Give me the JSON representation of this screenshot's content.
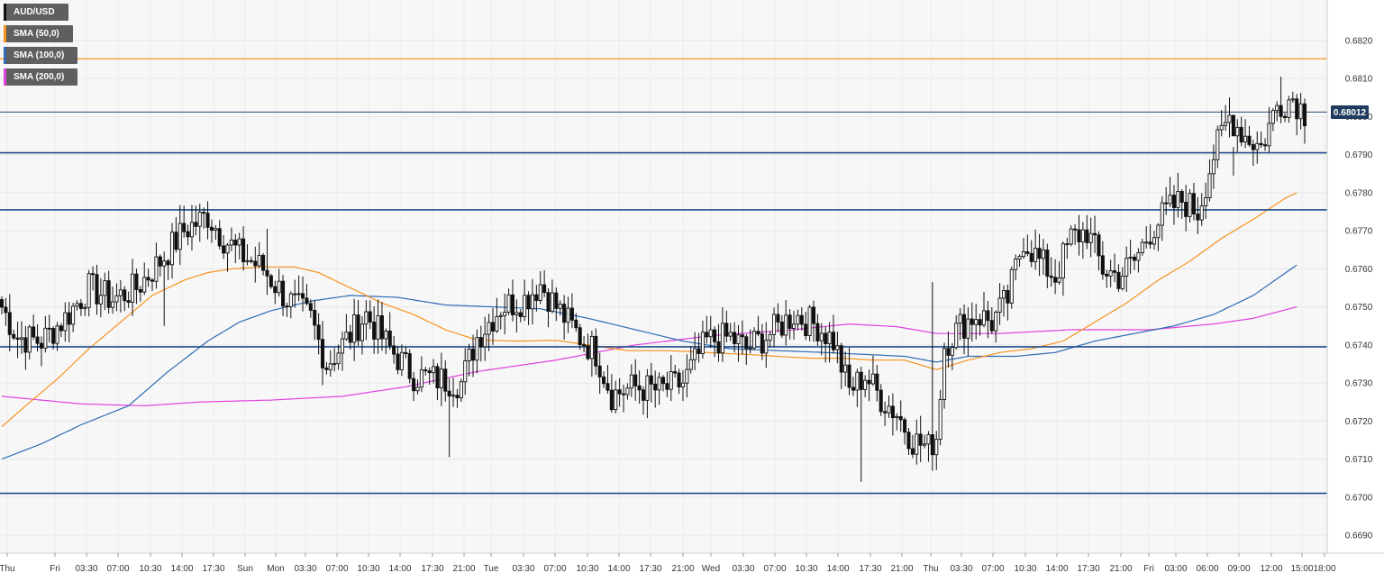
{
  "chart_data": {
    "type": "candlestick",
    "symbol": "AUD/USD",
    "legend": [
      {
        "label": "AUD/USD",
        "color": "#222222"
      },
      {
        "label": "SMA (50,0)",
        "color": "#f7931e"
      },
      {
        "label": "SMA (100,0)",
        "color": "#2e6bb3"
      },
      {
        "label": "SMA (200,0)",
        "color": "#e040e0"
      }
    ],
    "price_label": "0.68012",
    "last_price": 0.68012,
    "ylim": [
      0.6684,
      0.683
    ],
    "y_ticks": [
      "0.6820",
      "0.6810",
      "0.6800",
      "0.6790",
      "0.6780",
      "0.6770",
      "0.6760",
      "0.6750",
      "0.6740",
      "0.6730",
      "0.6720",
      "0.6710",
      "0.6700",
      "0.6690"
    ],
    "x_ticks": [
      "Thu",
      "Fri",
      "03:30",
      "07:00",
      "10:30",
      "14:00",
      "17:30",
      "Sun",
      "Mon",
      "03:30",
      "07:00",
      "10:30",
      "14:00",
      "17:30",
      "21:00",
      "Tue",
      "03:30",
      "07:00",
      "10:30",
      "14:00",
      "17:30",
      "21:00",
      "Wed",
      "03:30",
      "07:00",
      "10:30",
      "14:00",
      "17:30",
      "21:00",
      "Thu",
      "03:30",
      "07:00",
      "10:30",
      "14:00",
      "17:30",
      "21:00",
      "Fri",
      "03:00",
      "06:00",
      "09:00",
      "12:00",
      "15:00",
      "18:00"
    ],
    "levels": [
      {
        "value": 0.68152,
        "color": "#f7931e"
      },
      {
        "value": 0.67905,
        "color": "#1f4e8c"
      },
      {
        "value": 0.67755,
        "color": "#1f4e8c"
      },
      {
        "value": 0.67395,
        "color": "#1f4e8c"
      },
      {
        "value": 0.6701,
        "color": "#1f4e8c"
      }
    ],
    "close_anchors": [
      [
        0,
        0.675
      ],
      [
        4,
        0.6742
      ],
      [
        10,
        0.6741
      ],
      [
        16,
        0.6747
      ],
      [
        22,
        0.6755
      ],
      [
        28,
        0.6752
      ],
      [
        34,
        0.6755
      ],
      [
        40,
        0.6762
      ],
      [
        46,
        0.677
      ],
      [
        52,
        0.6774
      ],
      [
        56,
        0.6768
      ],
      [
        60,
        0.6764
      ],
      [
        66,
        0.676
      ],
      [
        72,
        0.6752
      ],
      [
        78,
        0.6747
      ],
      [
        82,
        0.6735
      ],
      [
        86,
        0.674
      ],
      [
        92,
        0.6748
      ],
      [
        98,
        0.6739
      ],
      [
        104,
        0.6732
      ],
      [
        110,
        0.6731
      ],
      [
        116,
        0.673
      ],
      [
        120,
        0.6742
      ],
      [
        126,
        0.675
      ],
      [
        132,
        0.6752
      ],
      [
        136,
        0.6756
      ],
      [
        140,
        0.675
      ],
      [
        146,
        0.6742
      ],
      [
        150,
        0.6738
      ],
      [
        154,
        0.6727
      ],
      [
        160,
        0.6729
      ],
      [
        166,
        0.6728
      ],
      [
        172,
        0.673
      ],
      [
        178,
        0.6741
      ],
      [
        184,
        0.6742
      ],
      [
        188,
        0.6739
      ],
      [
        194,
        0.6743
      ],
      [
        200,
        0.6748
      ],
      [
        206,
        0.6745
      ],
      [
        210,
        0.6741
      ],
      [
        214,
        0.6728
      ],
      [
        218,
        0.6732
      ],
      [
        222,
        0.6726
      ],
      [
        226,
        0.6722
      ],
      [
        230,
        0.6715
      ],
      [
        234,
        0.6713
      ],
      [
        236,
        0.6716
      ],
      [
        238,
        0.674
      ],
      [
        242,
        0.6745
      ],
      [
        246,
        0.6748
      ],
      [
        250,
        0.6746
      ],
      [
        254,
        0.6752
      ],
      [
        258,
        0.6768
      ],
      [
        262,
        0.6762
      ],
      [
        266,
        0.6758
      ],
      [
        270,
        0.6768
      ],
      [
        274,
        0.677
      ],
      [
        278,
        0.676
      ],
      [
        282,
        0.6758
      ],
      [
        286,
        0.6762
      ],
      [
        290,
        0.677
      ],
      [
        294,
        0.6775
      ],
      [
        298,
        0.6778
      ],
      [
        302,
        0.6775
      ],
      [
        306,
        0.679
      ],
      [
        310,
        0.68
      ],
      [
        314,
        0.6795
      ],
      [
        318,
        0.6792
      ],
      [
        322,
        0.6803
      ],
      [
        326,
        0.6805
      ],
      [
        329,
        0.6801
      ]
    ],
    "sma50": [
      [
        0,
        0.67185
      ],
      [
        6,
        0.6724
      ],
      [
        14,
        0.6731
      ],
      [
        22,
        0.6739
      ],
      [
        30,
        0.6746
      ],
      [
        38,
        0.6753
      ],
      [
        46,
        0.6757
      ],
      [
        52,
        0.6759
      ],
      [
        58,
        0.676
      ],
      [
        66,
        0.67605
      ],
      [
        74,
        0.67605
      ],
      [
        80,
        0.6759
      ],
      [
        88,
        0.6755
      ],
      [
        96,
        0.6751
      ],
      [
        104,
        0.6748
      ],
      [
        112,
        0.6744
      ],
      [
        120,
        0.67413
      ],
      [
        130,
        0.6741
      ],
      [
        140,
        0.67412
      ],
      [
        148,
        0.674
      ],
      [
        158,
        0.67385
      ],
      [
        168,
        0.67385
      ],
      [
        178,
        0.6738
      ],
      [
        188,
        0.67375
      ],
      [
        196,
        0.6737
      ],
      [
        204,
        0.67365
      ],
      [
        212,
        0.67365
      ],
      [
        220,
        0.6736
      ],
      [
        228,
        0.6736
      ],
      [
        236,
        0.67335
      ],
      [
        244,
        0.6736
      ],
      [
        252,
        0.6738
      ],
      [
        260,
        0.6739
      ],
      [
        268,
        0.6741
      ],
      [
        276,
        0.6746
      ],
      [
        284,
        0.6751
      ],
      [
        292,
        0.6757
      ],
      [
        300,
        0.6762
      ],
      [
        308,
        0.6768
      ],
      [
        316,
        0.6773
      ],
      [
        324,
        0.67785
      ],
      [
        327,
        0.678
      ]
    ],
    "sma100": [
      [
        0,
        0.671
      ],
      [
        10,
        0.6714
      ],
      [
        20,
        0.6719
      ],
      [
        32,
        0.6724
      ],
      [
        42,
        0.6733
      ],
      [
        52,
        0.6741
      ],
      [
        60,
        0.6746
      ],
      [
        68,
        0.6749
      ],
      [
        78,
        0.67515
      ],
      [
        88,
        0.6753
      ],
      [
        100,
        0.67525
      ],
      [
        112,
        0.67505
      ],
      [
        124,
        0.675
      ],
      [
        136,
        0.67495
      ],
      [
        148,
        0.6747
      ],
      [
        160,
        0.6744
      ],
      [
        172,
        0.6741
      ],
      [
        184,
        0.6739
      ],
      [
        196,
        0.67385
      ],
      [
        208,
        0.6738
      ],
      [
        218,
        0.67375
      ],
      [
        228,
        0.6737
      ],
      [
        236,
        0.67355
      ],
      [
        244,
        0.6737
      ],
      [
        256,
        0.6737
      ],
      [
        266,
        0.6738
      ],
      [
        276,
        0.6741
      ],
      [
        286,
        0.6743
      ],
      [
        296,
        0.6745
      ],
      [
        306,
        0.6748
      ],
      [
        316,
        0.6753
      ],
      [
        327,
        0.6761
      ]
    ],
    "sma200": [
      [
        0,
        0.67265
      ],
      [
        20,
        0.67245
      ],
      [
        36,
        0.6724
      ],
      [
        50,
        0.6725
      ],
      [
        68,
        0.67255
      ],
      [
        86,
        0.67265
      ],
      [
        102,
        0.6729
      ],
      [
        120,
        0.6733
      ],
      [
        140,
        0.6736
      ],
      [
        160,
        0.674
      ],
      [
        180,
        0.67425
      ],
      [
        200,
        0.6744
      ],
      [
        214,
        0.67455
      ],
      [
        226,
        0.67448
      ],
      [
        236,
        0.6743
      ],
      [
        252,
        0.6743
      ],
      [
        270,
        0.6744
      ],
      [
        290,
        0.6744
      ],
      [
        306,
        0.67455
      ],
      [
        316,
        0.6747
      ],
      [
        327,
        0.675
      ]
    ],
    "spikes": [
      {
        "i": 113,
        "low": 0.67105
      },
      {
        "i": 41,
        "low": 0.6745
      },
      {
        "i": 217,
        "low": 0.6704
      },
      {
        "i": 235,
        "high": 0.67565
      },
      {
        "i": 67,
        "high": 0.67705
      },
      {
        "i": 311,
        "high": 0.67845
      },
      {
        "i": 323,
        "high": 0.68105
      }
    ]
  }
}
